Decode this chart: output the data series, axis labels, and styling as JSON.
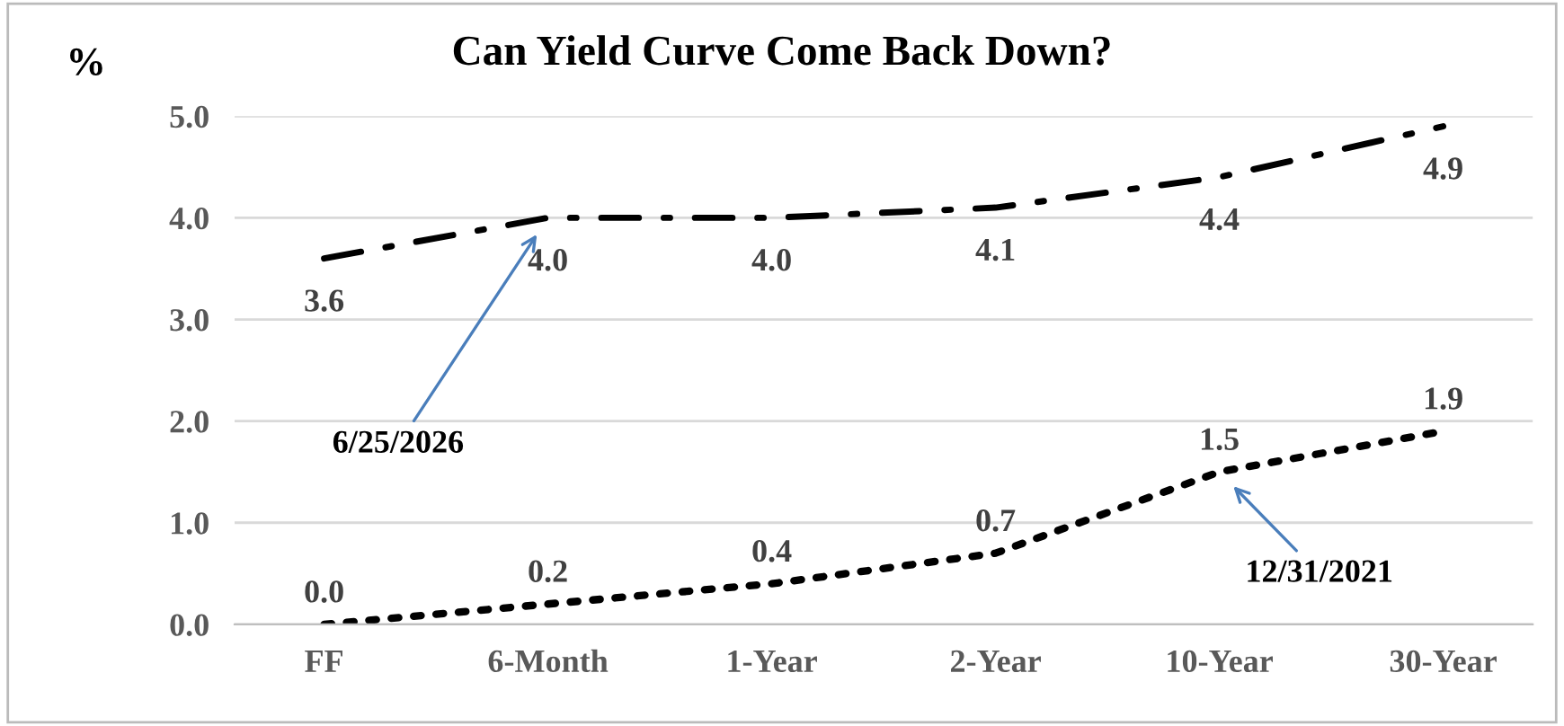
{
  "chart_data": {
    "type": "line",
    "title": "Can Yield Curve Come Back Down?",
    "ylabel": "%",
    "categories": [
      "FF",
      "6-Month",
      "1-Year",
      "2-Year",
      "10-Year",
      "30-Year"
    ],
    "series": [
      {
        "name": "6/25/2026",
        "color": "#000000",
        "line_style": "dashdot",
        "values": [
          3.6,
          4.0,
          4.0,
          4.1,
          4.4,
          4.9
        ],
        "value_labels": [
          "3.6",
          "4.0",
          "4.0",
          "4.1",
          "4.4",
          "4.9"
        ]
      },
      {
        "name": "12/31/2021",
        "color": "#000000",
        "line_style": "dotted",
        "values": [
          0.0,
          0.2,
          0.4,
          0.7,
          1.5,
          1.9
        ],
        "value_labels": [
          "0.0",
          "0.2",
          "0.4",
          "0.7",
          "1.5",
          "1.9"
        ]
      }
    ],
    "ylim": [
      0,
      5
    ],
    "yticks": [
      {
        "value": 0,
        "label": "0.0"
      },
      {
        "value": 1,
        "label": "1.0"
      },
      {
        "value": 2,
        "label": "2.0"
      },
      {
        "value": 3,
        "label": "3.0"
      },
      {
        "value": 4,
        "label": "4.0"
      },
      {
        "value": 5,
        "label": "5.0"
      }
    ],
    "grid": "y",
    "legend": false
  }
}
